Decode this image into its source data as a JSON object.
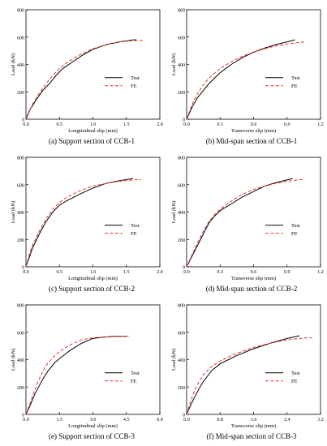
{
  "charts": [
    {
      "caption": "(a) Support section of CCB-1",
      "chart_data": {
        "type": "line",
        "xlabel": "Longitudinal slip (mm)",
        "ylabel": "Load (kN)",
        "xlim": [
          0,
          2.0
        ],
        "ylim": [
          0,
          800
        ],
        "xticks": [
          "0.0",
          "0.5",
          "1.0",
          "1.5",
          "2.0"
        ],
        "yticks": [
          "0",
          "200",
          "400",
          "600",
          "800"
        ],
        "legend_position": "right-middle",
        "series": [
          {
            "name": "Test",
            "color": "#000000",
            "dash": "solid",
            "x": [
              0,
              0.05,
              0.15,
              0.25,
              0.35,
              0.45,
              0.55,
              0.7,
              0.85,
              1.0,
              1.2,
              1.4,
              1.6,
              1.65
            ],
            "y": [
              0,
              60,
              140,
              210,
              260,
              320,
              370,
              420,
              470,
              510,
              545,
              565,
              580,
              580
            ]
          },
          {
            "name": "FE",
            "color": "#e8302a",
            "dash": "dashed",
            "x": [
              0,
              0.1,
              0.2,
              0.3,
              0.4,
              0.5,
              0.6,
              0.8,
              1.0,
              1.2,
              1.4,
              1.6,
              1.75
            ],
            "y": [
              0,
              110,
              190,
              260,
              320,
              370,
              410,
              470,
              515,
              545,
              565,
              575,
              575
            ]
          }
        ]
      }
    },
    {
      "caption": "(b) Mid-span section of CCB-1",
      "chart_data": {
        "type": "line",
        "xlabel": "Transverse slip (mm)",
        "ylabel": "Load (kN)",
        "xlim": [
          0,
          1.2
        ],
        "ylim": [
          0,
          800
        ],
        "xticks": [
          "0.0",
          "0.3",
          "0.6",
          "0.9",
          "1.2"
        ],
        "yticks": [
          "0",
          "200",
          "400",
          "600",
          "800"
        ],
        "legend_position": "right-middle",
        "series": [
          {
            "name": "Test",
            "color": "#000000",
            "dash": "solid",
            "x": [
              0,
              0.05,
              0.1,
              0.15,
              0.2,
              0.25,
              0.3,
              0.35,
              0.4,
              0.5,
              0.6,
              0.7,
              0.8,
              0.9,
              0.97
            ],
            "y": [
              0,
              90,
              160,
              210,
              260,
              300,
              340,
              370,
              400,
              450,
              490,
              520,
              545,
              565,
              580
            ]
          },
          {
            "name": "FE",
            "color": "#e8302a",
            "dash": "dashed",
            "x": [
              0,
              0.05,
              0.1,
              0.15,
              0.2,
              0.3,
              0.4,
              0.5,
              0.6,
              0.7,
              0.8,
              0.9,
              1.0,
              1.06
            ],
            "y": [
              0,
              110,
              190,
              250,
              300,
              370,
              420,
              460,
              490,
              515,
              535,
              550,
              560,
              565
            ]
          }
        ]
      }
    },
    {
      "caption": "(c) Support section of CCB-2",
      "chart_data": {
        "type": "line",
        "xlabel": "Longitudinal slip (mm)",
        "ylabel": "Load (kN)",
        "xlim": [
          0,
          2.0
        ],
        "ylim": [
          0,
          800
        ],
        "xticks": [
          "0.0",
          "0.5",
          "1.0",
          "1.5",
          "2.0"
        ],
        "yticks": [
          "0",
          "200",
          "400",
          "600",
          "800"
        ],
        "legend_position": "right-middle",
        "series": [
          {
            "name": "Test",
            "color": "#000000",
            "dash": "solid",
            "x": [
              0,
              0.05,
              0.1,
              0.2,
              0.3,
              0.4,
              0.5,
              0.6,
              0.8,
              1.0,
              1.2,
              1.4,
              1.6
            ],
            "y": [
              0,
              70,
              140,
              240,
              330,
              400,
              450,
              480,
              530,
              575,
              610,
              630,
              645
            ]
          },
          {
            "name": "FE",
            "color": "#e8302a",
            "dash": "dashed",
            "x": [
              0,
              0.05,
              0.1,
              0.2,
              0.3,
              0.4,
              0.5,
              0.6,
              0.8,
              1.0,
              1.2,
              1.4,
              1.6,
              1.72
            ],
            "y": [
              0,
              90,
              160,
              260,
              350,
              420,
              470,
              505,
              555,
              590,
              610,
              625,
              635,
              638
            ]
          }
        ]
      }
    },
    {
      "caption": "(d) Mid-span section of CCB-2",
      "chart_data": {
        "type": "line",
        "xlabel": "Transverse slip (mm)",
        "ylabel": "Load (kN)",
        "xlim": [
          0,
          1.2
        ],
        "ylim": [
          0,
          800
        ],
        "xticks": [
          "0.0",
          "0.3",
          "0.6",
          "0.9",
          "1.2"
        ],
        "yticks": [
          "0",
          "200",
          "400",
          "600",
          "800"
        ],
        "legend_position": "right-middle",
        "series": [
          {
            "name": "Test",
            "color": "#000000",
            "dash": "solid",
            "x": [
              0,
              0.05,
              0.1,
              0.15,
              0.2,
              0.25,
              0.3,
              0.4,
              0.5,
              0.6,
              0.7,
              0.8,
              0.9,
              0.95
            ],
            "y": [
              0,
              80,
              160,
              240,
              320,
              370,
              410,
              460,
              510,
              550,
              590,
              615,
              635,
              645
            ]
          },
          {
            "name": "FE",
            "color": "#e8302a",
            "dash": "dashed",
            "x": [
              0,
              0.05,
              0.1,
              0.15,
              0.2,
              0.25,
              0.3,
              0.4,
              0.5,
              0.6,
              0.7,
              0.8,
              0.9,
              1.0,
              1.04
            ],
            "y": [
              0,
              90,
              180,
              260,
              330,
              380,
              420,
              480,
              530,
              565,
              590,
              610,
              625,
              635,
              638
            ]
          }
        ]
      }
    },
    {
      "caption": "(e) Support section of CCB-3",
      "chart_data": {
        "type": "line",
        "xlabel": "Longitudinal slip (mm)",
        "ylabel": "Load (kN)",
        "xlim": [
          0,
          6.0
        ],
        "ylim": [
          0,
          800
        ],
        "xticks": [
          "0.0",
          "1.5",
          "3.0",
          "4.5",
          "6.0"
        ],
        "yticks": [
          "0",
          "200",
          "400",
          "600",
          "800"
        ],
        "legend_position": "right-middle",
        "series": [
          {
            "name": "Test",
            "color": "#000000",
            "dash": "solid",
            "x": [
              0,
              0.2,
              0.4,
              0.6,
              0.8,
              1.0,
              1.3,
              1.6,
              2.0,
              2.5,
              3.0,
              3.5,
              4.0,
              4.5
            ],
            "y": [
              0,
              70,
              150,
              210,
              270,
              320,
              380,
              420,
              470,
              520,
              555,
              565,
              570,
              570
            ]
          },
          {
            "name": "FE",
            "color": "#e8302a",
            "dash": "dashed",
            "x": [
              0,
              0.2,
              0.4,
              0.6,
              0.8,
              1.0,
              1.3,
              1.6,
              2.0,
              2.5,
              3.0,
              3.5,
              4.0,
              4.6
            ],
            "y": [
              0,
              90,
              180,
              260,
              330,
              380,
              430,
              470,
              510,
              545,
              560,
              565,
              568,
              570
            ]
          }
        ]
      }
    },
    {
      "caption": "(f) Mid-span section of CCB-3",
      "chart_data": {
        "type": "line",
        "xlabel": "Transverse slip (mm)",
        "ylabel": "Load (kN)",
        "xlim": [
          0,
          3.2
        ],
        "ylim": [
          0,
          800
        ],
        "xticks": [
          "0.0",
          "0.8",
          "1.6",
          "2.4",
          "3.2"
        ],
        "yticks": [
          "0",
          "200",
          "400",
          "600",
          "800"
        ],
        "legend_position": "right-middle",
        "series": [
          {
            "name": "Test",
            "color": "#000000",
            "dash": "solid",
            "x": [
              0,
              0.1,
              0.2,
              0.3,
              0.4,
              0.5,
              0.6,
              0.8,
              1.0,
              1.2,
              1.6,
              2.0,
              2.4,
              2.7
            ],
            "y": [
              0,
              70,
              130,
              190,
              240,
              280,
              320,
              370,
              400,
              430,
              480,
              520,
              555,
              575
            ]
          },
          {
            "name": "FE",
            "color": "#e8302a",
            "dash": "dashed",
            "x": [
              0,
              0.1,
              0.2,
              0.3,
              0.4,
              0.6,
              0.8,
              1.0,
              1.2,
              1.6,
              2.0,
              2.4,
              2.8,
              3.0
            ],
            "y": [
              0,
              100,
              180,
              240,
              290,
              350,
              390,
              420,
              445,
              490,
              520,
              545,
              558,
              560
            ]
          }
        ]
      }
    }
  ]
}
